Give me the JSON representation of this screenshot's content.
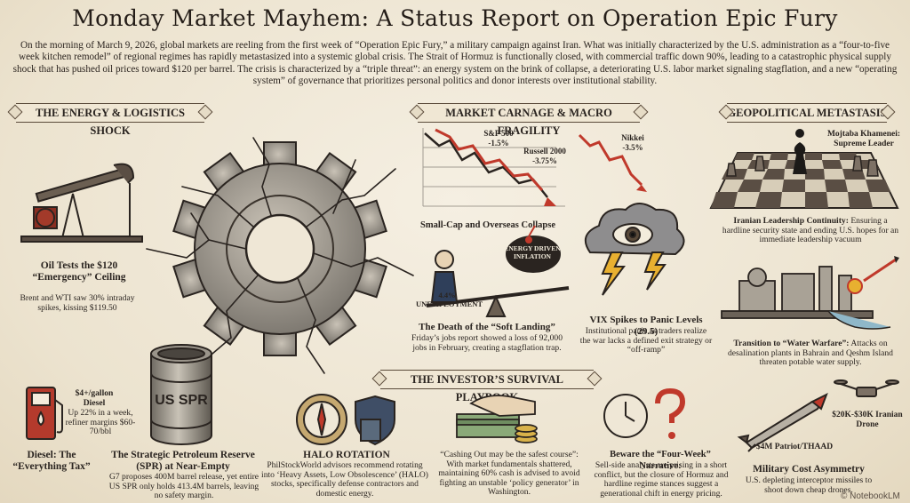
{
  "title": "Monday Market Mayhem: A Status Report on Operation Epic Fury",
  "intro": "On the morning of March 9, 2026, global markets are reeling from the first week of “Operation Epic Fury,” a military campaign against Iran. What was initially characterized by the U.S. administration as a “four-to-five week kitchen remodel” of regional regimes has rapidly metastasized into a systemic global crisis. The Strait of Hormuz is functionally closed, with commercial traffic down 90%, leading to a catastrophic physical supply shock that has pushed oil prices toward $120 per barrel. The crisis is characterized by a “triple threat”: an energy system on the brink of collapse, a deteriorating U.S. labor market signaling stagflation, and a new “operating system” of governance that prioritizes personal politics and donor interests over institutional stability.",
  "sections": {
    "energy": "THE ENERGY & LOGISTICS SHOCK",
    "market": "MARKET CARNAGE & MACRO FRAGILITY",
    "geo": "GEOPOLITICAL METASTASIS",
    "playbook": "THE INVESTOR’S SURVIVAL PLAYBOOK"
  },
  "energy": {
    "oil_title": "Oil Tests the $120 “Emergency” Ceiling",
    "oil_body": "Brent and WTI saw 30% intraday spikes, kissing $119.50",
    "diesel_price": "$4+/gallon Diesel",
    "diesel_stats": "Up 22% in a week, refiner margins $60-70/bbl",
    "diesel_title": "Diesel: The “Everything Tax”",
    "barrel_label": "US SPR",
    "spr_title": "The Strategic Petroleum Reserve (SPR) at Near-Empty",
    "spr_body": "G7 proposes 400M barrel release, yet entire US SPR only holds 413.4M barrels, leaving no safety margin."
  },
  "market": {
    "sp500": "S&P 500 -1.5%",
    "russell": "Russell 2000 -3.75%",
    "nikkei": "Nikkei -3.5%",
    "collapse_title": "Small-Cap and Overseas Collapse",
    "unemployment": "4.4% UNEMPLOYMENT",
    "inflation": "ENERGY DRIVEN INFLATION",
    "soft_title": "The Death of the “Soft Landing”",
    "soft_body": "Friday’s jobs report showed a loss of 92,000 jobs in February, creating a stagflation trap.",
    "vix_title": "VIX Spikes to Panic Levels (29.5)",
    "vix_body": "Institutional panic as traders realize the war lacks a defined exit strategy or “off-ramp”"
  },
  "geo": {
    "leader_tag": "Mojtaba Khamenei: Supreme Leader",
    "leader_title": "Iranian Leadership Continuity:",
    "leader_body": "Ensuring a hardline security state and ending U.S. hopes for an immediate leadership vacuum",
    "water_title": "Transition to “Water Warfare”:",
    "water_body": "Attacks on desalination plants in Bahrain and Qeshm Island threaten potable water supply.",
    "drone_cost": "$20K-$30K Iranian Drone",
    "patriot_cost": "$4M Patriot/THAAD",
    "military_title": "Military Cost Asymmetry",
    "military_body": "U.S. depleting interceptor missiles to shoot down cheap drones."
  },
  "playbook": {
    "halo_title": "HALO ROTATION",
    "halo_body": "PhilStockWorld advisors recommend rotating into ‘Heavy Assets, Low Obsolescence’ (HALO) stocks, specifically defense contractors and domestic energy.",
    "cash_body": "“Cashing Out may be the safest course”: With market fundamentals shattered, maintaining 60% cash is advised to avoid fighting an unstable ‘policy generator’ in Washington.",
    "fourweek_title": "Beware the “Four-Week” Narrative:",
    "fourweek_body": "Sell-side analysts are prising in a short conflict, but the closure of Hormuz and hardline regime stances suggest a generational chift in energy pricing."
  },
  "footer": "© NotebookLM",
  "colors": {
    "accent_red": "#c0392b",
    "ink": "#2a2420",
    "paper": "#efe7d6"
  }
}
